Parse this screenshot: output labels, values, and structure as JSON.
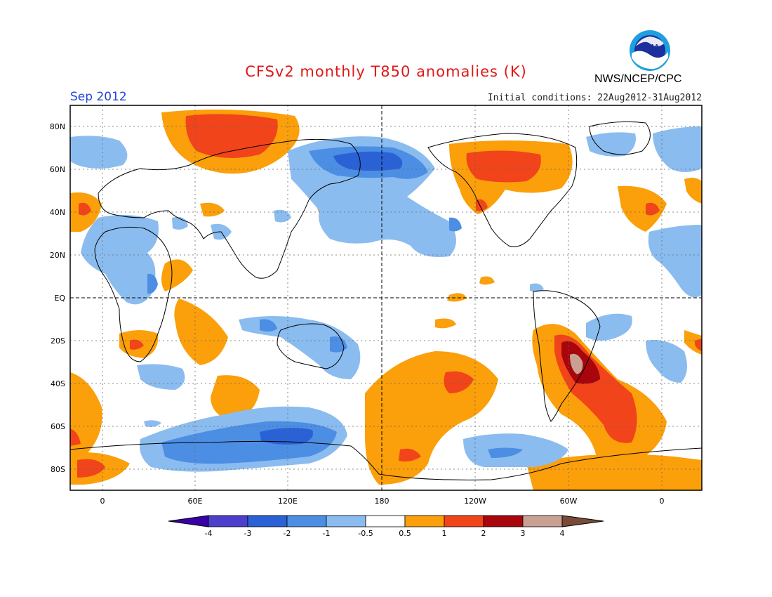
{
  "header": {
    "title": "CFSv2 monthly T850 anomalies (K)",
    "month": "Sep 2012",
    "initial_conditions": "Initial conditions: 22Aug2012-31Aug2012",
    "agency": "NWS/NCEP/CPC",
    "logo_text": "NOAA"
  },
  "map": {
    "lat_labels": [
      "80N",
      "60N",
      "40N",
      "20N",
      "EQ",
      "20S",
      "40S",
      "60S",
      "80S"
    ],
    "lon_labels": [
      "0",
      "60E",
      "120E",
      "180",
      "120W",
      "60W",
      "0"
    ]
  },
  "colorbar": {
    "labels": [
      "-4",
      "-3",
      "-2",
      "-1",
      "-0.5",
      "0.5",
      "1",
      "2",
      "3",
      "4"
    ],
    "colors": [
      "#3a00a8",
      "#4b3fcc",
      "#2a62d6",
      "#4c8ee4",
      "#8bbcef",
      "#ffffff",
      "#fb9f0a",
      "#f1441a",
      "#a8060c",
      "#c9a192",
      "#7a4a38"
    ]
  }
}
